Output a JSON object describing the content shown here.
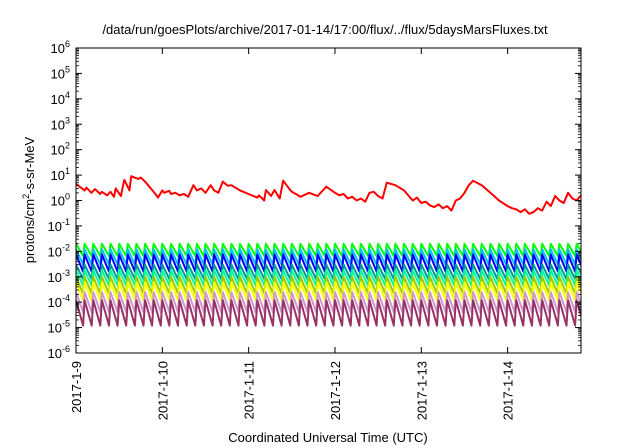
{
  "chart_data": {
    "type": "line",
    "title": "/data/run/goesPlots/archive/2017-01-14/17:00/flux/../flux/5daysMarsFluxes.txt",
    "xlabel": "Coordinated Universal Time (UTC)",
    "ylabel": {
      "prefix": "protons/cm",
      "sup": "2",
      "suffix": "-s-sr-MeV"
    },
    "y_scale": "log",
    "ylim": [
      1e-06,
      1000000.0
    ],
    "y_ticks": [
      {
        "base": "10",
        "exp": "-6",
        "value": 1e-06
      },
      {
        "base": "10",
        "exp": "-5",
        "value": 1e-05
      },
      {
        "base": "10",
        "exp": "-4",
        "value": 0.0001
      },
      {
        "base": "10",
        "exp": "-3",
        "value": 0.001
      },
      {
        "base": "10",
        "exp": "-2",
        "value": 0.01
      },
      {
        "base": "10",
        "exp": "-1",
        "value": 0.1
      },
      {
        "base": "10",
        "exp": "0",
        "value": 1
      },
      {
        "base": "10",
        "exp": "1",
        "value": 10
      },
      {
        "base": "10",
        "exp": "2",
        "value": 100
      },
      {
        "base": "10",
        "exp": "3",
        "value": 1000
      },
      {
        "base": "10",
        "exp": "4",
        "value": 10000
      },
      {
        "base": "10",
        "exp": "5",
        "value": 100000
      },
      {
        "base": "10",
        "exp": "6",
        "value": 1000000
      }
    ],
    "x_ticks": [
      "2017-1-9",
      "2017-1-10",
      "2017-1-11",
      "2017-1-12",
      "2017-1-13",
      "2017-1-14"
    ],
    "x_tick_days": [
      0,
      1,
      2,
      3,
      4,
      5
    ],
    "xlim_days": [
      0,
      5.85
    ],
    "grid": false,
    "red_series": {
      "color": "#ff0000",
      "x_days": [
        0.0,
        0.1,
        0.12,
        0.18,
        0.22,
        0.28,
        0.3,
        0.36,
        0.4,
        0.44,
        0.46,
        0.52,
        0.56,
        0.62,
        0.64,
        0.72,
        0.75,
        0.8,
        0.85,
        0.92,
        0.95,
        1.0,
        1.02,
        1.08,
        1.1,
        1.15,
        1.2,
        1.25,
        1.3,
        1.36,
        1.4,
        1.45,
        1.5,
        1.56,
        1.6,
        1.65,
        1.7,
        1.76,
        1.8,
        1.9,
        2.0,
        2.1,
        2.12,
        2.18,
        2.2,
        2.26,
        2.3,
        2.36,
        2.4,
        2.46,
        2.5,
        2.56,
        2.6,
        2.7,
        2.8,
        2.9,
        3.0,
        3.05,
        3.1,
        3.15,
        3.2,
        3.25,
        3.3,
        3.35,
        3.4,
        3.45,
        3.5,
        3.55,
        3.6,
        3.7,
        3.8,
        3.9,
        3.95,
        4.0,
        4.05,
        4.1,
        4.15,
        4.2,
        4.25,
        4.3,
        4.35,
        4.4,
        4.45,
        4.5,
        4.55,
        4.6,
        4.7,
        4.8,
        4.9,
        5.0,
        5.05,
        5.1,
        5.15,
        5.2,
        5.25,
        5.3,
        5.35,
        5.4,
        5.45,
        5.5,
        5.55,
        5.6,
        5.65,
        5.7,
        5.75,
        5.8,
        5.85
      ],
      "y": [
        4.5,
        2.5,
        3.2,
        2.0,
        2.8,
        1.8,
        2.2,
        1.6,
        2.2,
        1.4,
        3.0,
        1.5,
        6.5,
        2.5,
        9.0,
        7.0,
        8.0,
        5.5,
        3.5,
        1.8,
        1.3,
        2.5,
        2.0,
        2.4,
        1.8,
        2.0,
        1.6,
        1.8,
        1.4,
        4.0,
        2.5,
        3.0,
        2.0,
        4.0,
        2.5,
        2.0,
        5.5,
        3.8,
        4.0,
        2.5,
        1.8,
        1.3,
        1.6,
        1.0,
        2.6,
        1.5,
        2.6,
        1.2,
        6.0,
        3.2,
        2.2,
        1.7,
        1.4,
        2.0,
        1.5,
        3.5,
        2.0,
        1.6,
        1.8,
        1.2,
        1.4,
        1.0,
        1.2,
        0.9,
        2.0,
        2.2,
        1.5,
        1.2,
        5.0,
        4.0,
        2.5,
        1.0,
        1.3,
        0.8,
        0.9,
        0.65,
        0.55,
        0.7,
        0.5,
        0.6,
        0.4,
        1.0,
        1.2,
        2.0,
        4.0,
        6.0,
        4.0,
        2.0,
        1.0,
        0.6,
        0.5,
        0.45,
        0.35,
        0.45,
        0.3,
        0.35,
        0.5,
        0.4,
        0.9,
        0.6,
        1.5,
        1.0,
        0.8,
        2.0,
        1.2,
        1.0,
        1.6
      ]
    },
    "periodic_series": {
      "period_days": 0.1,
      "start_days": 0.0,
      "end_days": 5.85,
      "bands": [
        {
          "color": "#00ff00",
          "high": 0.02,
          "low": 0.0065
        },
        {
          "color": "#00c0ff",
          "high": 0.012,
          "low": 0.003
        },
        {
          "color": "#0000ff",
          "high": 0.0075,
          "low": 0.0016
        },
        {
          "color": "#009999",
          "high": 0.003,
          "low": 0.0008
        },
        {
          "color": "#00ff99",
          "high": 0.0018,
          "low": 0.00045
        },
        {
          "color": "#99cc00",
          "high": 0.001,
          "low": 0.00022
        },
        {
          "color": "#ffff00",
          "high": 0.0006,
          "low": 0.00012
        },
        {
          "color": "#cc99cc",
          "high": 0.00025,
          "low": 4e-05
        },
        {
          "color": "#993366",
          "high": 0.00012,
          "low": 1.2e-05
        }
      ]
    }
  }
}
